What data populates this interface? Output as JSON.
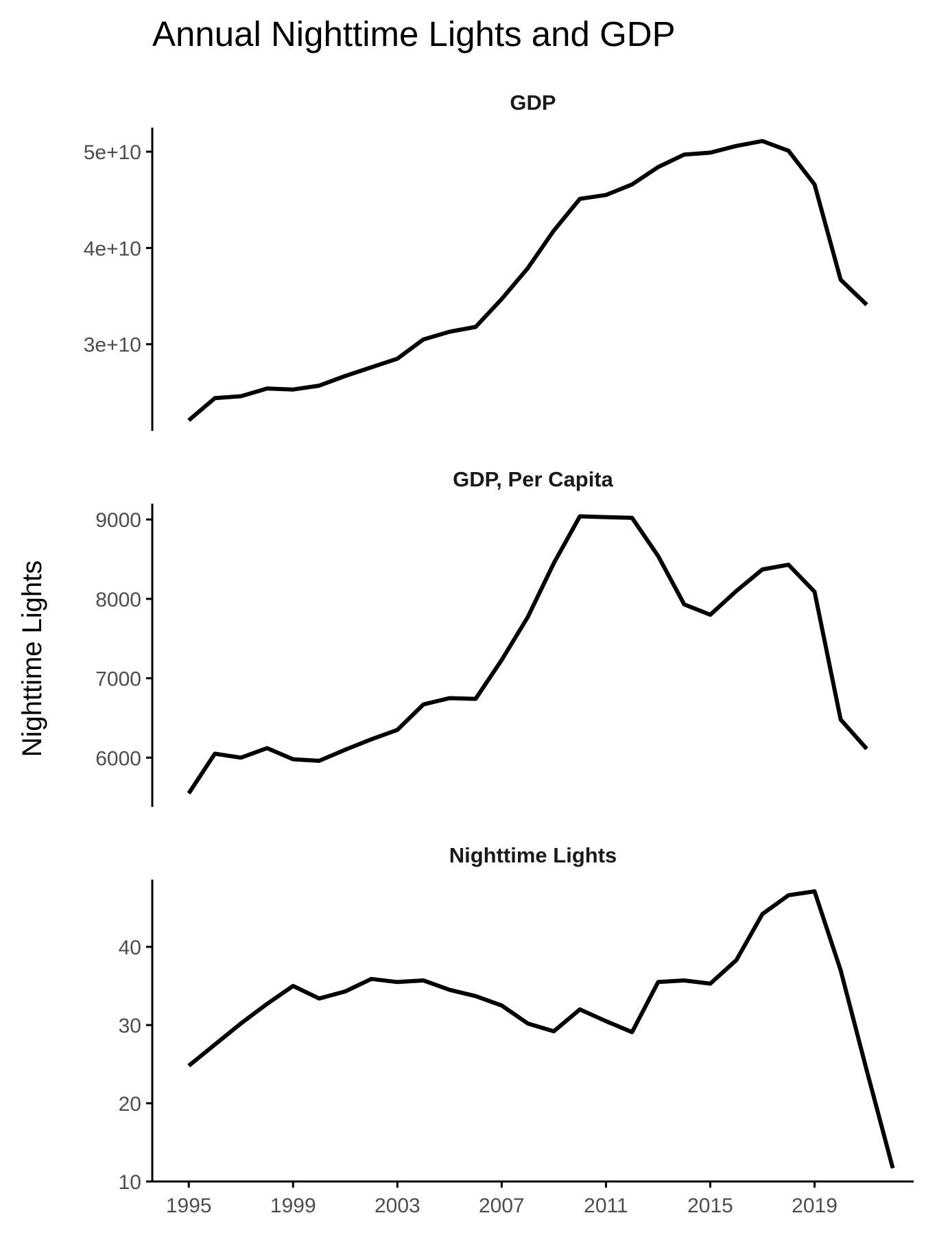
{
  "chart_data": {
    "type": "line",
    "title": "Annual Nighttime Lights and GDP",
    "ylabel": "Nighttime Lights",
    "xlabel": "",
    "x_ticks": [
      1995,
      1999,
      2003,
      2007,
      2011,
      2015,
      2019
    ],
    "panels": [
      {
        "strip": "GDP",
        "ylim": [
          21000000000,
          52500000000
        ],
        "y_ticks": [
          30000000000,
          40000000000,
          50000000000
        ],
        "y_tick_labels": [
          "3e+10",
          "4e+10",
          "5e+10"
        ],
        "x": [
          1995,
          1996,
          1997,
          1998,
          1999,
          2000,
          2001,
          2002,
          2003,
          2004,
          2005,
          2006,
          2007,
          2008,
          2009,
          2010,
          2011,
          2012,
          2013,
          2014,
          2015,
          2016,
          2017,
          2018,
          2019,
          2020,
          2021
        ],
        "values": [
          22100000000,
          24400000000,
          24600000000,
          25400000000,
          25300000000,
          25700000000,
          26700000000,
          27600000000,
          28500000000,
          30500000000,
          31300000000,
          31800000000,
          34700000000,
          37900000000,
          41800000000,
          45100000000,
          45500000000,
          46600000000,
          48400000000,
          49700000000,
          49900000000,
          50600000000,
          51100000000,
          50100000000,
          46600000000,
          36700000000,
          34100000000
        ]
      },
      {
        "strip": "GDP, Per Capita",
        "ylim": [
          5380,
          9200
        ],
        "y_ticks": [
          6000,
          7000,
          8000,
          9000
        ],
        "y_tick_labels": [
          "6000",
          "7000",
          "8000",
          "9000"
        ],
        "x": [
          1995,
          1996,
          1997,
          1998,
          1999,
          2000,
          2001,
          2002,
          2003,
          2004,
          2005,
          2006,
          2007,
          2008,
          2009,
          2010,
          2011,
          2012,
          2013,
          2014,
          2015,
          2016,
          2017,
          2018,
          2019,
          2020,
          2021
        ],
        "values": [
          5550,
          6050,
          6000,
          6120,
          5980,
          5960,
          6100,
          6230,
          6350,
          6670,
          6750,
          6740,
          7230,
          7770,
          8450,
          9040,
          9030,
          9020,
          8540,
          7930,
          7800,
          8100,
          8370,
          8430,
          8090,
          6480,
          6110
        ]
      },
      {
        "strip": "Nighttime Lights",
        "ylim": [
          10,
          48.6
        ],
        "y_ticks": [
          10,
          20,
          30,
          40
        ],
        "y_tick_labels": [
          "10",
          "20",
          "30",
          "40"
        ],
        "x": [
          1995,
          1996,
          1997,
          1998,
          1999,
          2000,
          2001,
          2002,
          2003,
          2004,
          2005,
          2006,
          2007,
          2008,
          2009,
          2010,
          2011,
          2012,
          2013,
          2014,
          2015,
          2016,
          2017,
          2018,
          2019,
          2020,
          2021,
          2022
        ],
        "values": [
          24.8,
          27.5,
          30.2,
          32.7,
          35.0,
          33.4,
          34.3,
          35.9,
          35.5,
          35.7,
          34.5,
          33.7,
          32.5,
          30.2,
          29.2,
          32.0,
          30.5,
          29.1,
          35.5,
          35.7,
          35.3,
          38.3,
          44.2,
          46.6,
          47.1,
          37.0,
          24.2,
          11.7
        ]
      }
    ],
    "grid": false,
    "legend": "none"
  }
}
